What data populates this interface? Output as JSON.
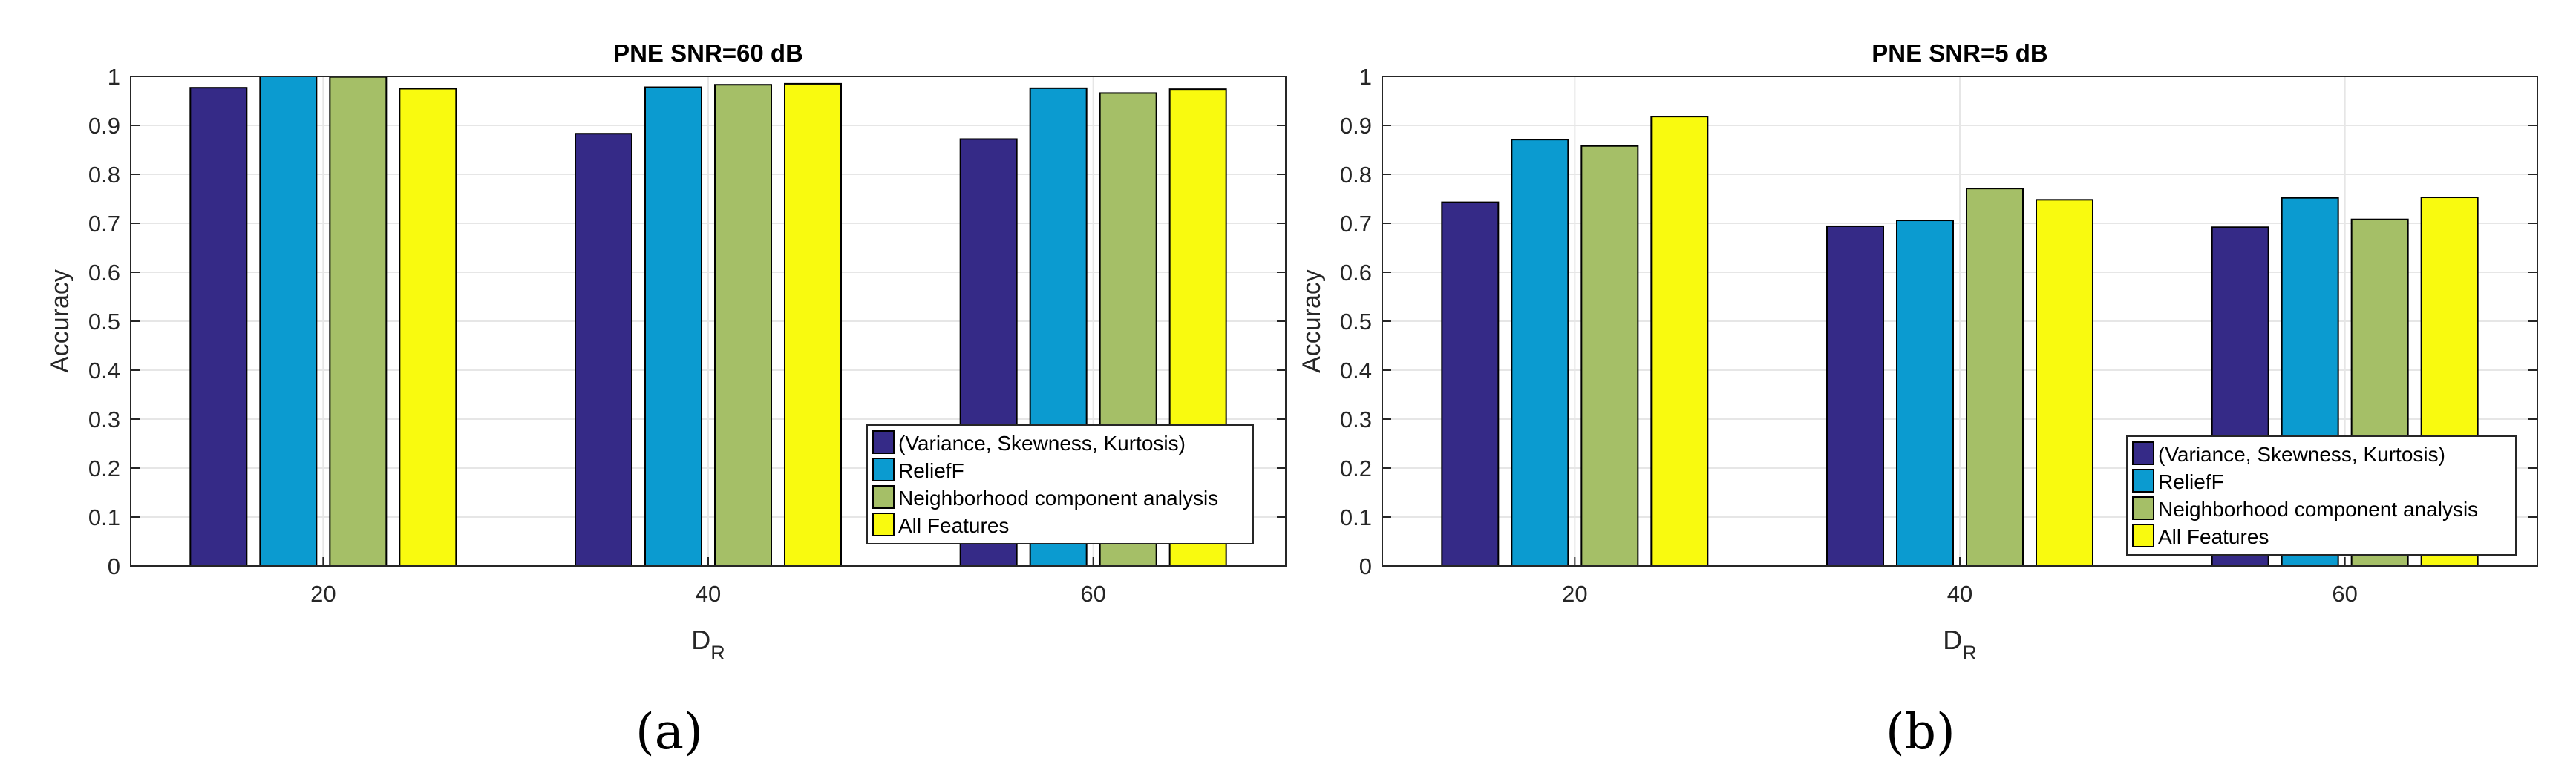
{
  "colors": {
    "series": [
      "#352a87",
      "#0b9bd0",
      "#a5bf67",
      "#f9fa0f"
    ],
    "axis": "#333333",
    "grid": "#e6e6e6",
    "frame": "#000000"
  },
  "chart_data": [
    {
      "type": "bar",
      "title": "PNE SNR=60 dB",
      "xlabel": "D",
      "xlabel_subscript": "R",
      "ylabel": "Accuracy",
      "ylim": [
        0,
        1
      ],
      "yticks": [
        "0",
        "0.1",
        "0.2",
        "0.3",
        "0.4",
        "0.5",
        "0.6",
        "0.7",
        "0.8",
        "0.9",
        "1"
      ],
      "categories": [
        "20",
        "40",
        "60"
      ],
      "grid": true,
      "legend_position": "bottom-right",
      "series": [
        {
          "name": "(Variance, Skewness, Kurtosis)",
          "values": [
            0.977,
            0.883,
            0.872
          ]
        },
        {
          "name": "ReliefF",
          "values": [
            1.0,
            0.978,
            0.976
          ]
        },
        {
          "name": "Neighborhood component analysis",
          "values": [
            0.999,
            0.983,
            0.966
          ]
        },
        {
          "name": "All Features",
          "values": [
            0.975,
            0.985,
            0.974
          ]
        }
      ],
      "panel_label": "(a)"
    },
    {
      "type": "bar",
      "title": "PNE SNR=5 dB",
      "xlabel": "D",
      "xlabel_subscript": "R",
      "ylabel": "Accuracy",
      "ylim": [
        0,
        1
      ],
      "yticks": [
        "0",
        "0.1",
        "0.2",
        "0.3",
        "0.4",
        "0.5",
        "0.6",
        "0.7",
        "0.8",
        "0.9",
        "1"
      ],
      "categories": [
        "20",
        "40",
        "60"
      ],
      "grid": true,
      "legend_position": "bottom-right",
      "series": [
        {
          "name": "(Variance, Skewness, Kurtosis)",
          "values": [
            0.743,
            0.694,
            0.692
          ]
        },
        {
          "name": "ReliefF",
          "values": [
            0.871,
            0.706,
            0.752
          ]
        },
        {
          "name": "Neighborhood component analysis",
          "values": [
            0.858,
            0.771,
            0.708
          ]
        },
        {
          "name": "All Features",
          "values": [
            0.918,
            0.748,
            0.753
          ]
        }
      ],
      "panel_label": "(b)"
    }
  ]
}
